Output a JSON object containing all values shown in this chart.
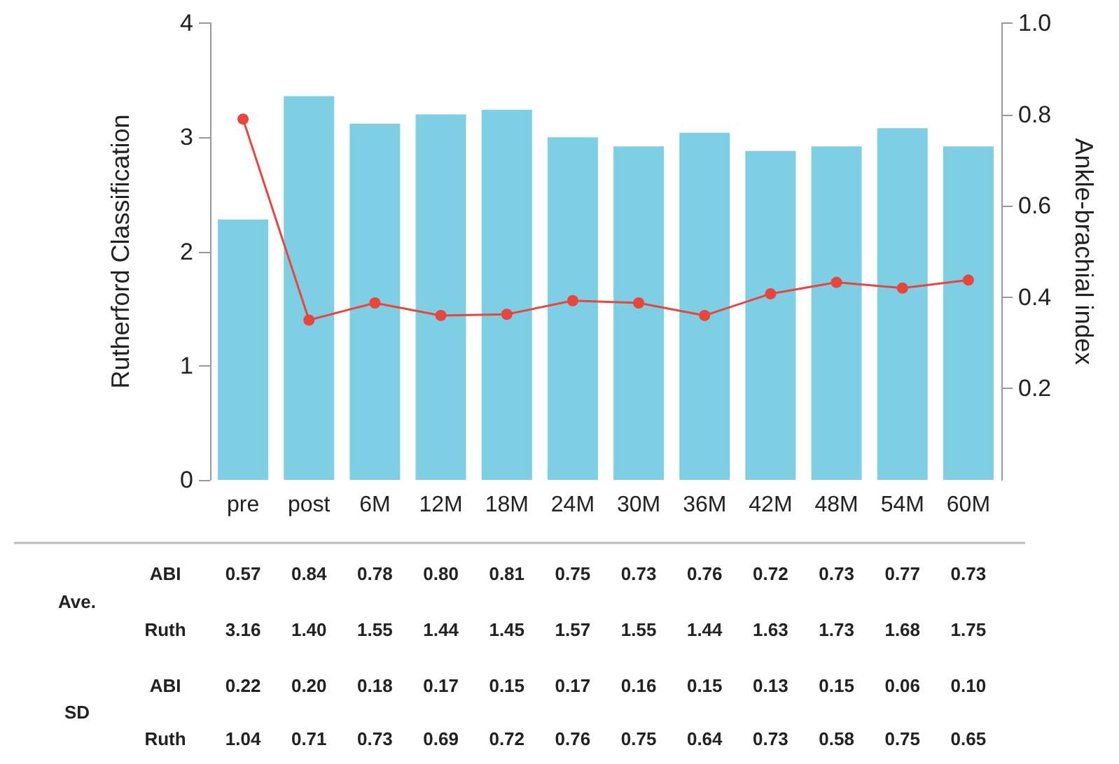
{
  "chart_data": {
    "type": "bar",
    "ylabel": "Rutherford Classification",
    "y2label": "Ankle-brachial index",
    "categories": [
      "pre",
      "post",
      "6M",
      "12M",
      "18M",
      "24M",
      "30M",
      "36M",
      "42M",
      "48M",
      "54M",
      "60M"
    ],
    "series": [
      {
        "axis": "y2",
        "color": "#7ecfe3",
        "values": [
          0.57,
          0.84,
          0.78,
          0.8,
          0.81,
          0.75,
          0.73,
          0.76,
          0.72,
          0.73,
          0.77,
          0.73
        ]
      },
      {
        "type": "line",
        "color": "#e8453c",
        "values": [
          3.16,
          1.4,
          1.55,
          1.44,
          1.45,
          1.57,
          1.55,
          1.44,
          1.63,
          1.73,
          1.68,
          1.75
        ]
      }
    ],
    "ylim": [
      0,
      4
    ],
    "yticks": [
      0,
      1,
      2,
      3,
      4
    ],
    "y2lim": [
      0,
      1
    ],
    "y2ticks": [
      0.2,
      0.4,
      0.6,
      0.8,
      {
        "value": 1,
        "label": "1.0"
      }
    ],
    "marker": "circle",
    "grid": false,
    "annotations": [
      "Ave.",
      "SD",
      "ABI",
      "Ruth",
      "ABI",
      "Ruth",
      "0.57",
      "0.84",
      "0.78",
      "0.80",
      "0.81",
      "0.75",
      "0.73",
      "0.76",
      "0.72",
      "0.73",
      "0.77",
      "0.73",
      "3.16",
      "1.40",
      "1.55",
      "1.44",
      "1.45",
      "1.57",
      "1.55",
      "1.44",
      "1.63",
      "1.73",
      "1.68",
      "1.75",
      "0.22",
      "0.20",
      "0.18",
      "0.17",
      "0.15",
      "0.17",
      "0.16",
      "0.15",
      "0.13",
      "0.15",
      "0.06",
      "0.10",
      "1.04",
      "0.71",
      "0.73",
      "0.69",
      "0.72",
      "0.76",
      "0.75",
      "0.64",
      "0.73",
      "0.58",
      "0.75",
      "0.65"
    ]
  }
}
